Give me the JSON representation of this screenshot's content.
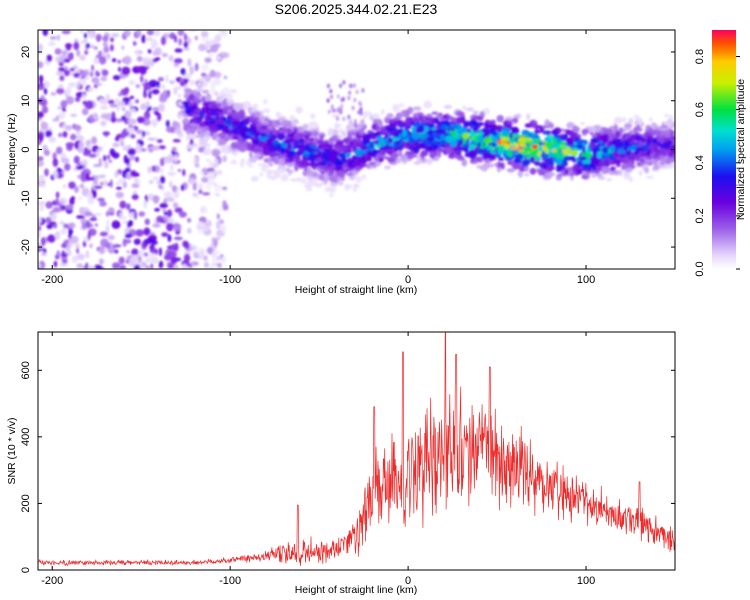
{
  "figure_title": "S206.2025.344.02.21.E23",
  "chart_data": [
    {
      "type": "heatmap",
      "title": "",
      "xlabel": "Height of straight line (km)",
      "ylabel": "Frequency (Hz)",
      "xlim": [
        -208,
        150
      ],
      "ylim": [
        -24.5,
        24.5
      ],
      "xticks": [
        -200,
        -100,
        0,
        100
      ],
      "yticks": [
        -20,
        -10,
        0,
        10,
        20
      ],
      "colorbar": {
        "label": "Normalized spectral amplitude",
        "range": [
          0,
          0.9
        ],
        "ticks": [
          "0.0",
          "0.2",
          "0.4",
          "0.6",
          "0.8"
        ],
        "tick_values": [
          0,
          0.2,
          0.4,
          0.6,
          0.8
        ]
      },
      "ridge": {
        "description_points_x": [
          -120,
          -100,
          -80,
          -60,
          -40,
          -20,
          0,
          20,
          40,
          60,
          80,
          100,
          120,
          145
        ],
        "frequency_hz": [
          8,
          5,
          2,
          0,
          -2,
          1,
          3,
          3,
          2,
          1,
          0,
          -1,
          0,
          1
        ],
        "peak_amplitude": [
          0.35,
          0.4,
          0.4,
          0.45,
          0.4,
          0.5,
          0.55,
          0.6,
          0.7,
          0.85,
          0.8,
          0.6,
          0.45,
          0.3
        ]
      },
      "noise_region_x": [
        -208,
        -110
      ],
      "colors": {
        "0.00": "#ffffff",
        "0.05": "#e6d8fb",
        "0.15": "#9b5fe8",
        "0.25": "#6a00e0",
        "0.35": "#1c10f0",
        "0.45": "#00a0f0",
        "0.52": "#00e0d0",
        "0.60": "#00e040",
        "0.70": "#c8f000",
        "0.78": "#ffcc00",
        "0.85": "#ff5000",
        "0.95": "#ff0060"
      }
    },
    {
      "type": "line",
      "title": "",
      "xlabel": "Height of straight line (km)",
      "ylabel": "SNR (10 * v/v)",
      "xlim": [
        -208,
        150
      ],
      "ylim": [
        0,
        715
      ],
      "xticks": [
        -200,
        -100,
        0,
        100
      ],
      "yticks": [
        0,
        200,
        400,
        600
      ],
      "series": [
        {
          "name": "SNR",
          "color": "#ee2b2b",
          "envelope_x": [
            -208,
            -150,
            -120,
            -100,
            -80,
            -60,
            -40,
            -28,
            -20,
            0,
            20,
            40,
            60,
            80,
            100,
            120,
            140,
            150
          ],
          "envelope_mean": [
            22,
            22,
            22,
            30,
            42,
            55,
            60,
            110,
            220,
            290,
            360,
            370,
            320,
            250,
            200,
            160,
            120,
            80
          ],
          "envelope_spread": [
            8,
            8,
            8,
            10,
            18,
            45,
            40,
            70,
            140,
            170,
            180,
            160,
            120,
            100,
            70,
            60,
            50,
            35
          ],
          "peaks": [
            {
              "x": -62,
              "y": 195
            },
            {
              "x": -19,
              "y": 490
            },
            {
              "x": -3,
              "y": 655
            },
            {
              "x": 21,
              "y": 712
            },
            {
              "x": 27,
              "y": 648
            },
            {
              "x": 46,
              "y": 610
            },
            {
              "x": 130,
              "y": 265
            }
          ]
        }
      ]
    }
  ]
}
